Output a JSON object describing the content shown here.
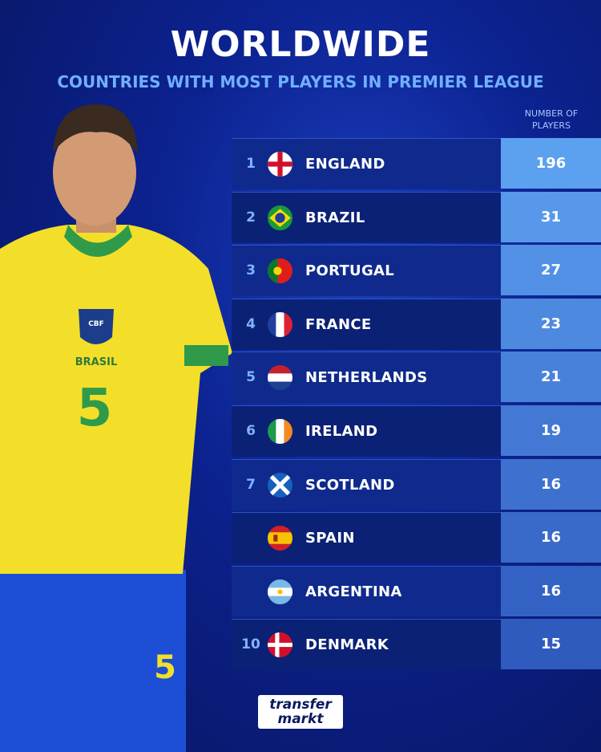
{
  "header": {
    "title": "WORLDWIDE",
    "subtitle": "COUNTRIES WITH MOST PLAYERS IN PREMIER LEAGUE",
    "column_label": "NUMBER OF PLAYERS"
  },
  "player": {
    "shirt_text": "BRASIL",
    "shirt_number": "5",
    "crest": "CBF"
  },
  "table": {
    "rows": [
      {
        "rank": 1,
        "country": "ENGLAND",
        "players": 196
      },
      {
        "rank": 2,
        "country": "BRAZIL",
        "players": 31
      },
      {
        "rank": 3,
        "country": "PORTUGAL",
        "players": 27
      },
      {
        "rank": 4,
        "country": "FRANCE",
        "players": 23
      },
      {
        "rank": 5,
        "country": "NETHERLANDS",
        "players": 21
      },
      {
        "rank": 6,
        "country": "IRELAND",
        "players": 19
      },
      {
        "rank": 7,
        "country": "SCOTLAND",
        "players": 16
      },
      {
        "rank": null,
        "country": "SPAIN",
        "players": 16
      },
      {
        "rank": null,
        "country": "ARGENTINA",
        "players": 16
      },
      {
        "rank": 10,
        "country": "DENMARK",
        "players": 15
      }
    ]
  },
  "logo": {
    "line1": "transfer",
    "line2": "markt"
  }
}
